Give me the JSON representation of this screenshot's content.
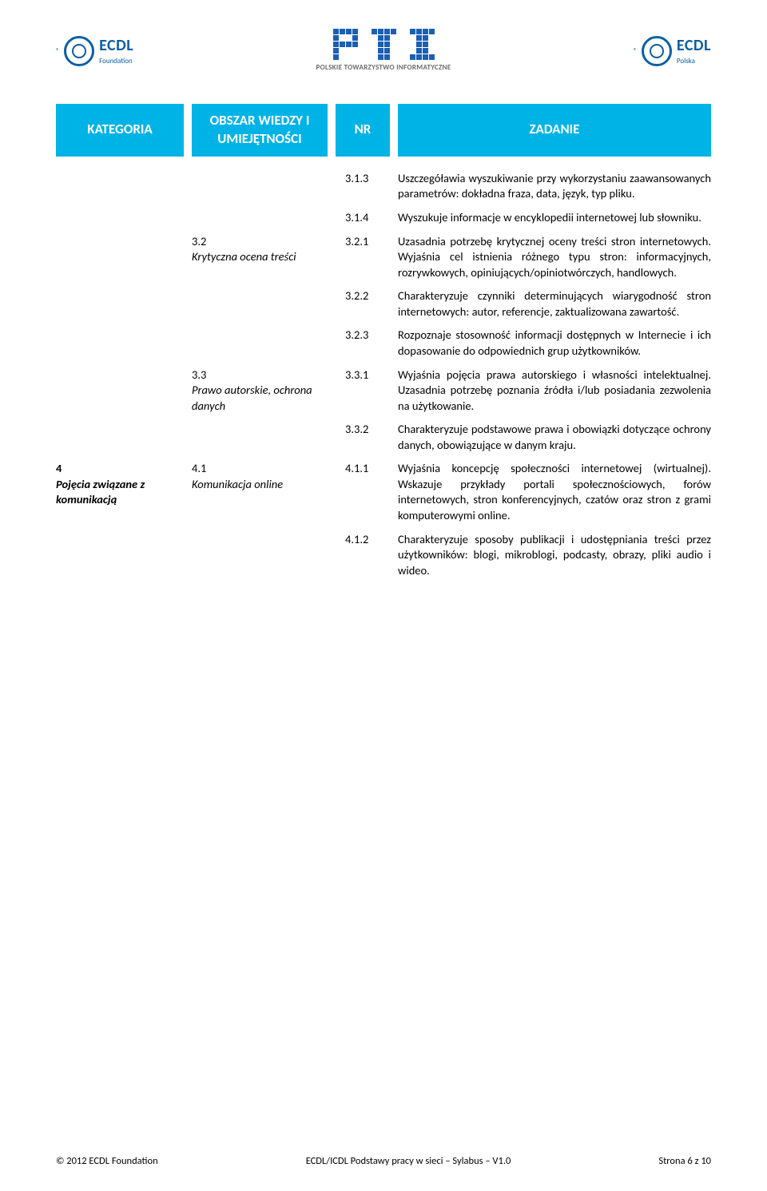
{
  "logos": {
    "left_text": "ECDL",
    "left_sub": "Foundation",
    "center_sub": "POLSKIE TOWARZYSTWO INFORMATYCZNE",
    "right_text": "ECDL",
    "right_sub": "Polska"
  },
  "headers": {
    "kategoria": "KATEGORIA",
    "obszar": "OBSZAR WIEDZY I UMIEJĘTNOŚCI",
    "nr": "NR",
    "zadanie": "ZADANIE"
  },
  "rows": [
    {
      "kat": "",
      "obs": "",
      "nr": "3.1.3",
      "zad": "Uszczegóławia wyszukiwanie przy wykorzystaniu zaawansowanych parametrów: dokładna fraza, data, język, typ pliku."
    },
    {
      "kat": "",
      "obs": "",
      "nr": "3.1.4",
      "zad": "Wyszukuje informacje w encyklopedii internetowej lub słowniku."
    },
    {
      "kat": "",
      "obs_num": "3.2",
      "obs": "Krytyczna ocena treści",
      "nr": "3.2.1",
      "zad": "Uzasadnia potrzebę krytycznej oceny treści stron internetowych. Wyjaśnia cel istnienia różnego typu stron: informacyjnych, rozrywkowych, opiniujących/opiniotwórczych, handlowych."
    },
    {
      "kat": "",
      "obs": "",
      "nr": "3.2.2",
      "zad": "Charakteryzuje czynniki determinujących wiarygodność stron internetowych: autor, referencje, zaktualizowana zawartość."
    },
    {
      "kat": "",
      "obs": "",
      "nr": "3.2.3",
      "zad": "Rozpoznaje stosowność informacji dostępnych w Internecie i ich dopasowanie do odpowiednich grup użytkowników."
    },
    {
      "kat": "",
      "obs_num": "3.3",
      "obs": "Prawo autorskie, ochrona danych",
      "nr": "3.3.1",
      "zad": "Wyjaśnia pojęcia prawa autorskiego i własności intelektualnej. Uzasadnia potrzebę poznania źródła i/lub posiadania zezwolenia na użytkowanie."
    },
    {
      "kat": "",
      "obs": "",
      "nr": "3.3.2",
      "zad": "Charakteryzuje podstawowe prawa i obowiązki dotyczące ochrony danych, obowiązujące w danym kraju."
    },
    {
      "kat_num": "4",
      "kat": "Pojęcia związane z komunikacją",
      "obs_num": "4.1",
      "obs": "Komunikacja online",
      "nr": "4.1.1",
      "zad": "Wyjaśnia koncepcję społeczności internetowej (wirtualnej). Wskazuje przykłady portali społecznościowych, forów internetowych, stron konferencyjnych, czatów oraz stron z grami komputerowymi online."
    },
    {
      "kat": "",
      "obs": "",
      "nr": "4.1.2",
      "zad": "Charakteryzuje sposoby publikacji i udostępniania treści przez użytkowników: blogi, mikroblogi, podcasty, obrazy, pliki audio i wideo."
    }
  ],
  "footer": {
    "left": "© 2012 ECDL Foundation",
    "center": "ECDL/ICDL Podstawy pracy w sieci – Sylabus – V1.0",
    "right": "Strona 6 z 10"
  }
}
